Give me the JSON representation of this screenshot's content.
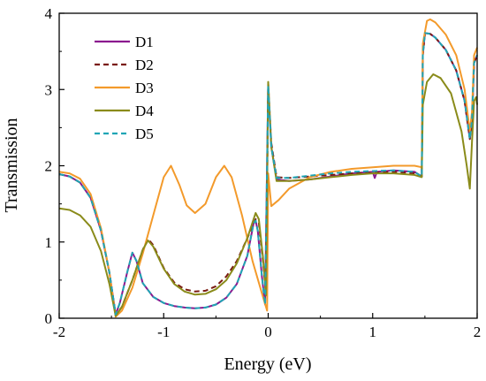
{
  "chart_data": {
    "type": "line",
    "title": "",
    "xlabel": "Energy (eV)",
    "ylabel": "Transmission",
    "xlim": [
      -2,
      2
    ],
    "ylim": [
      0,
      4
    ],
    "x_ticks": [
      -2,
      -1,
      0,
      1,
      2
    ],
    "y_ticks": [
      0,
      1,
      2,
      3,
      4
    ],
    "grid": false,
    "legend_position": "top-left",
    "series": [
      {
        "name": "D1",
        "color": "#8B1A8F",
        "dash": "solid",
        "points": [
          [
            -2.0,
            1.89
          ],
          [
            -1.9,
            1.86
          ],
          [
            -1.8,
            1.78
          ],
          [
            -1.7,
            1.58
          ],
          [
            -1.6,
            1.15
          ],
          [
            -1.52,
            0.6
          ],
          [
            -1.46,
            0.05
          ],
          [
            -1.42,
            0.2
          ],
          [
            -1.35,
            0.6
          ],
          [
            -1.3,
            0.86
          ],
          [
            -1.26,
            0.75
          ],
          [
            -1.2,
            0.46
          ],
          [
            -1.1,
            0.28
          ],
          [
            -1.0,
            0.2
          ],
          [
            -0.9,
            0.16
          ],
          [
            -0.8,
            0.14
          ],
          [
            -0.7,
            0.13
          ],
          [
            -0.6,
            0.14
          ],
          [
            -0.5,
            0.18
          ],
          [
            -0.4,
            0.27
          ],
          [
            -0.3,
            0.45
          ],
          [
            -0.2,
            0.82
          ],
          [
            -0.14,
            1.24
          ],
          [
            -0.12,
            1.28
          ],
          [
            -0.1,
            1.15
          ],
          [
            -0.06,
            0.55
          ],
          [
            -0.03,
            0.18
          ],
          [
            0.0,
            3.05
          ],
          [
            0.03,
            2.25
          ],
          [
            0.08,
            1.82
          ],
          [
            0.2,
            1.8
          ],
          [
            0.4,
            1.82
          ],
          [
            0.6,
            1.86
          ],
          [
            0.8,
            1.9
          ],
          [
            1.0,
            1.92
          ],
          [
            1.02,
            1.84
          ],
          [
            1.04,
            1.92
          ],
          [
            1.2,
            1.94
          ],
          [
            1.4,
            1.92
          ],
          [
            1.47,
            1.86
          ],
          [
            1.48,
            3.45
          ],
          [
            1.5,
            3.74
          ],
          [
            1.55,
            3.73
          ],
          [
            1.6,
            3.68
          ],
          [
            1.7,
            3.52
          ],
          [
            1.8,
            3.25
          ],
          [
            1.88,
            2.85
          ],
          [
            1.93,
            2.35
          ],
          [
            1.95,
            2.6
          ],
          [
            1.97,
            3.35
          ],
          [
            2.0,
            3.45
          ]
        ]
      },
      {
        "name": "D2",
        "color": "#7A1B12",
        "dash": "6,4",
        "points": [
          [
            -2.0,
            1.89
          ],
          [
            -1.9,
            1.86
          ],
          [
            -1.8,
            1.78
          ],
          [
            -1.7,
            1.58
          ],
          [
            -1.6,
            1.15
          ],
          [
            -1.52,
            0.6
          ],
          [
            -1.46,
            0.04
          ],
          [
            -1.4,
            0.15
          ],
          [
            -1.3,
            0.5
          ],
          [
            -1.2,
            0.9
          ],
          [
            -1.15,
            1.04
          ],
          [
            -1.1,
            0.96
          ],
          [
            -1.0,
            0.66
          ],
          [
            -0.9,
            0.47
          ],
          [
            -0.8,
            0.38
          ],
          [
            -0.7,
            0.35
          ],
          [
            -0.6,
            0.36
          ],
          [
            -0.5,
            0.42
          ],
          [
            -0.4,
            0.55
          ],
          [
            -0.3,
            0.75
          ],
          [
            -0.2,
            1.05
          ],
          [
            -0.12,
            1.3
          ],
          [
            -0.09,
            1.25
          ],
          [
            -0.05,
            0.75
          ],
          [
            -0.02,
            0.3
          ],
          [
            0.0,
            3.08
          ],
          [
            0.03,
            2.3
          ],
          [
            0.08,
            1.85
          ],
          [
            0.2,
            1.84
          ],
          [
            0.4,
            1.86
          ],
          [
            0.6,
            1.88
          ],
          [
            0.8,
            1.9
          ],
          [
            1.0,
            1.91
          ],
          [
            1.2,
            1.92
          ],
          [
            1.4,
            1.9
          ],
          [
            1.47,
            1.86
          ],
          [
            1.48,
            3.45
          ],
          [
            1.5,
            3.74
          ],
          [
            1.55,
            3.73
          ],
          [
            1.6,
            3.68
          ],
          [
            1.7,
            3.52
          ],
          [
            1.8,
            3.25
          ],
          [
            1.88,
            2.85
          ],
          [
            1.93,
            2.35
          ],
          [
            1.95,
            2.6
          ],
          [
            1.97,
            3.35
          ],
          [
            2.0,
            3.45
          ]
        ]
      },
      {
        "name": "D3",
        "color": "#F39A2B",
        "dash": "solid",
        "points": [
          [
            -2.0,
            1.92
          ],
          [
            -1.9,
            1.9
          ],
          [
            -1.8,
            1.83
          ],
          [
            -1.7,
            1.63
          ],
          [
            -1.6,
            1.18
          ],
          [
            -1.52,
            0.6
          ],
          [
            -1.46,
            0.02
          ],
          [
            -1.4,
            0.1
          ],
          [
            -1.3,
            0.4
          ],
          [
            -1.2,
            0.85
          ],
          [
            -1.1,
            1.35
          ],
          [
            -1.0,
            1.85
          ],
          [
            -0.93,
            2.0
          ],
          [
            -0.85,
            1.75
          ],
          [
            -0.78,
            1.48
          ],
          [
            -0.7,
            1.38
          ],
          [
            -0.6,
            1.5
          ],
          [
            -0.5,
            1.85
          ],
          [
            -0.42,
            2.0
          ],
          [
            -0.35,
            1.85
          ],
          [
            -0.25,
            1.35
          ],
          [
            -0.15,
            0.75
          ],
          [
            -0.05,
            0.28
          ],
          [
            -0.01,
            0.1
          ],
          [
            0.0,
            1.9
          ],
          [
            0.03,
            1.47
          ],
          [
            0.1,
            1.55
          ],
          [
            0.2,
            1.7
          ],
          [
            0.4,
            1.85
          ],
          [
            0.6,
            1.92
          ],
          [
            0.8,
            1.96
          ],
          [
            1.0,
            1.98
          ],
          [
            1.2,
            2.0
          ],
          [
            1.4,
            2.0
          ],
          [
            1.47,
            1.98
          ],
          [
            1.48,
            3.6
          ],
          [
            1.52,
            3.9
          ],
          [
            1.55,
            3.92
          ],
          [
            1.6,
            3.88
          ],
          [
            1.7,
            3.72
          ],
          [
            1.8,
            3.45
          ],
          [
            1.88,
            3.0
          ],
          [
            1.93,
            2.45
          ],
          [
            1.95,
            2.7
          ],
          [
            1.97,
            3.45
          ],
          [
            2.0,
            3.55
          ]
        ]
      },
      {
        "name": "D4",
        "color": "#8A8B1A",
        "dash": "solid",
        "points": [
          [
            -2.0,
            1.44
          ],
          [
            -1.9,
            1.42
          ],
          [
            -1.8,
            1.35
          ],
          [
            -1.7,
            1.2
          ],
          [
            -1.6,
            0.88
          ],
          [
            -1.52,
            0.45
          ],
          [
            -1.46,
            0.03
          ],
          [
            -1.4,
            0.15
          ],
          [
            -1.3,
            0.5
          ],
          [
            -1.2,
            0.9
          ],
          [
            -1.15,
            1.02
          ],
          [
            -1.1,
            0.94
          ],
          [
            -1.0,
            0.65
          ],
          [
            -0.9,
            0.45
          ],
          [
            -0.8,
            0.35
          ],
          [
            -0.7,
            0.31
          ],
          [
            -0.6,
            0.32
          ],
          [
            -0.5,
            0.38
          ],
          [
            -0.4,
            0.5
          ],
          [
            -0.3,
            0.72
          ],
          [
            -0.2,
            1.05
          ],
          [
            -0.12,
            1.38
          ],
          [
            -0.09,
            1.3
          ],
          [
            -0.05,
            0.8
          ],
          [
            -0.02,
            0.3
          ],
          [
            0.0,
            3.1
          ],
          [
            0.03,
            2.25
          ],
          [
            0.08,
            1.8
          ],
          [
            0.2,
            1.8
          ],
          [
            0.4,
            1.82
          ],
          [
            0.6,
            1.85
          ],
          [
            0.8,
            1.88
          ],
          [
            1.0,
            1.9
          ],
          [
            1.2,
            1.9
          ],
          [
            1.4,
            1.88
          ],
          [
            1.47,
            1.85
          ],
          [
            1.48,
            2.8
          ],
          [
            1.52,
            3.1
          ],
          [
            1.58,
            3.2
          ],
          [
            1.65,
            3.15
          ],
          [
            1.75,
            2.95
          ],
          [
            1.85,
            2.45
          ],
          [
            1.9,
            2.0
          ],
          [
            1.93,
            1.7
          ],
          [
            1.95,
            2.3
          ],
          [
            1.97,
            2.85
          ],
          [
            1.99,
            2.9
          ],
          [
            2.0,
            2.8
          ]
        ]
      },
      {
        "name": "D5",
        "color": "#1FA5B5",
        "dash": "6,4",
        "points": [
          [
            -2.0,
            1.89
          ],
          [
            -1.9,
            1.86
          ],
          [
            -1.8,
            1.78
          ],
          [
            -1.7,
            1.58
          ],
          [
            -1.6,
            1.15
          ],
          [
            -1.52,
            0.6
          ],
          [
            -1.46,
            0.05
          ],
          [
            -1.42,
            0.2
          ],
          [
            -1.35,
            0.6
          ],
          [
            -1.3,
            0.86
          ],
          [
            -1.26,
            0.75
          ],
          [
            -1.2,
            0.46
          ],
          [
            -1.1,
            0.28
          ],
          [
            -1.0,
            0.2
          ],
          [
            -0.9,
            0.16
          ],
          [
            -0.8,
            0.14
          ],
          [
            -0.7,
            0.13
          ],
          [
            -0.6,
            0.14
          ],
          [
            -0.5,
            0.18
          ],
          [
            -0.4,
            0.27
          ],
          [
            -0.3,
            0.45
          ],
          [
            -0.2,
            0.82
          ],
          [
            -0.14,
            1.24
          ],
          [
            -0.12,
            1.28
          ],
          [
            -0.1,
            1.15
          ],
          [
            -0.06,
            0.55
          ],
          [
            -0.03,
            0.18
          ],
          [
            0.0,
            3.05
          ],
          [
            0.03,
            2.25
          ],
          [
            0.08,
            1.84
          ],
          [
            0.2,
            1.84
          ],
          [
            0.4,
            1.87
          ],
          [
            0.6,
            1.9
          ],
          [
            0.8,
            1.92
          ],
          [
            1.0,
            1.93
          ],
          [
            1.2,
            1.94
          ],
          [
            1.4,
            1.92
          ],
          [
            1.47,
            1.86
          ],
          [
            1.48,
            3.45
          ],
          [
            1.5,
            3.74
          ],
          [
            1.55,
            3.73
          ],
          [
            1.6,
            3.68
          ],
          [
            1.7,
            3.52
          ],
          [
            1.8,
            3.25
          ],
          [
            1.88,
            2.85
          ],
          [
            1.93,
            2.35
          ],
          [
            1.95,
            2.6
          ],
          [
            1.97,
            3.35
          ],
          [
            2.0,
            3.45
          ]
        ]
      }
    ]
  }
}
